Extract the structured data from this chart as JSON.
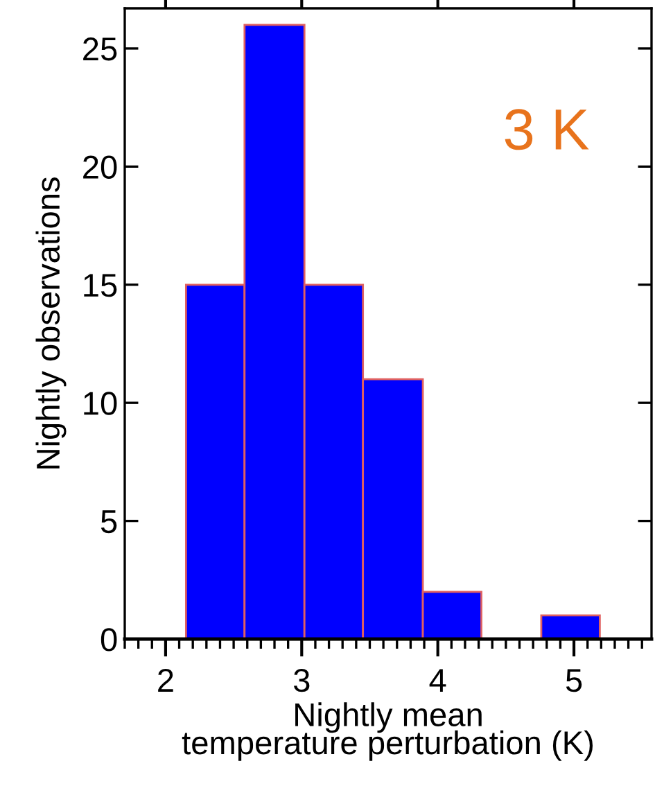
{
  "chart_data": {
    "type": "histogram",
    "bins": [
      2.15,
      2.58,
      3.02,
      3.45,
      3.89,
      4.32,
      4.76,
      5.19
    ],
    "values": [
      15,
      26,
      15,
      11,
      2,
      0,
      1
    ],
    "color": "#0000ff",
    "xlabel": "Nightly mean\ntemperature perturbation (K)",
    "ylabel": "Nightly observations",
    "xlim": [
      1.7,
      5.57
    ],
    "xticks": [
      2,
      3,
      4,
      5
    ],
    "ylim": [
      0,
      26.7
    ],
    "yticks": [
      0,
      5,
      10,
      15,
      20,
      25
    ],
    "annotations": [
      "3 K"
    ],
    "grid": false,
    "legend": false
  }
}
